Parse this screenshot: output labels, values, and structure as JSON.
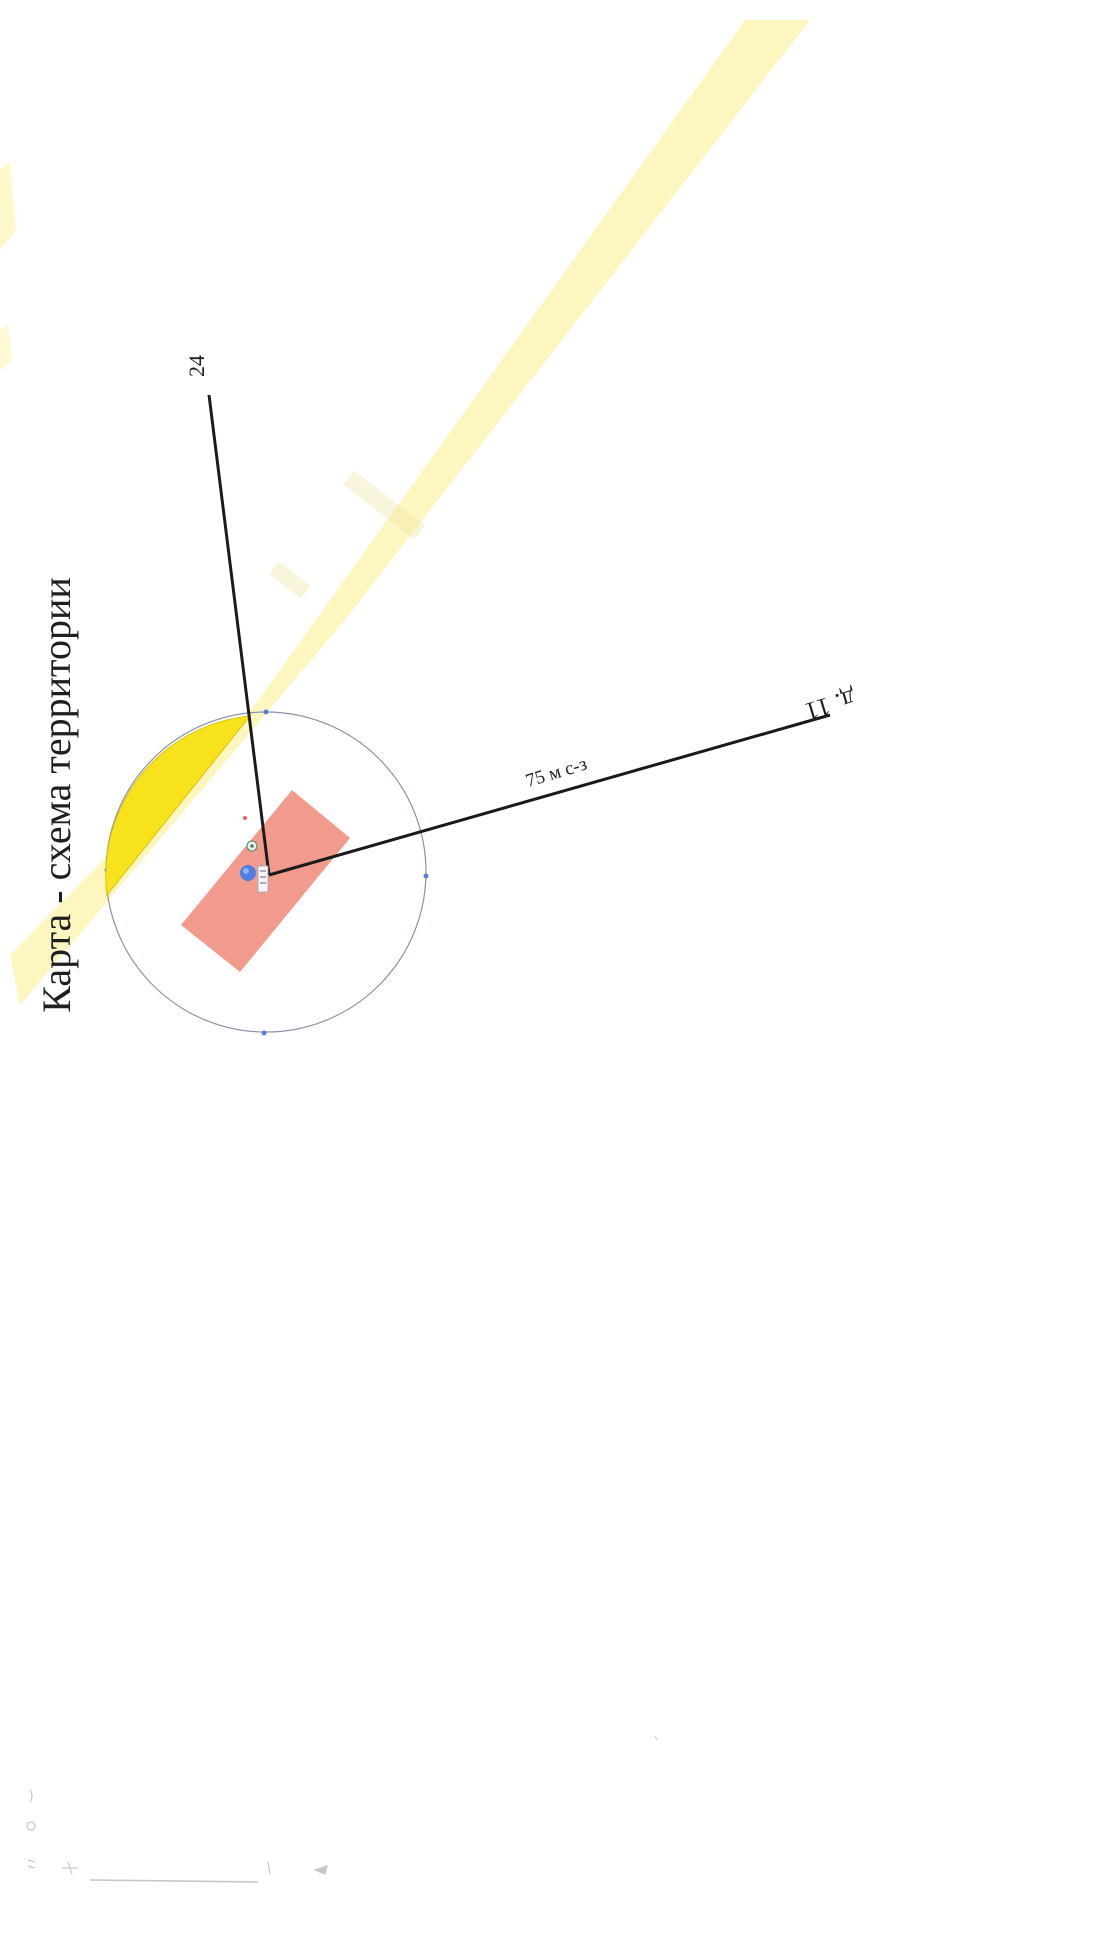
{
  "map": {
    "title": "Карта - схема территории",
    "labels": {
      "house_number": "24",
      "distance": "75 м с-з",
      "village": "д. 11"
    },
    "colors": {
      "road_band": "#fdf5b4",
      "zone_segment": "#f7e21c",
      "building": "#f29a8c",
      "radius_circle": "#8a93a8",
      "leader_lines": "#1a1a1a",
      "marker": "#4f7fe0",
      "paper": "#ffffff"
    },
    "icons": {
      "location_marker": "location-pin-icon",
      "small_marker": "point-marker-icon"
    }
  }
}
